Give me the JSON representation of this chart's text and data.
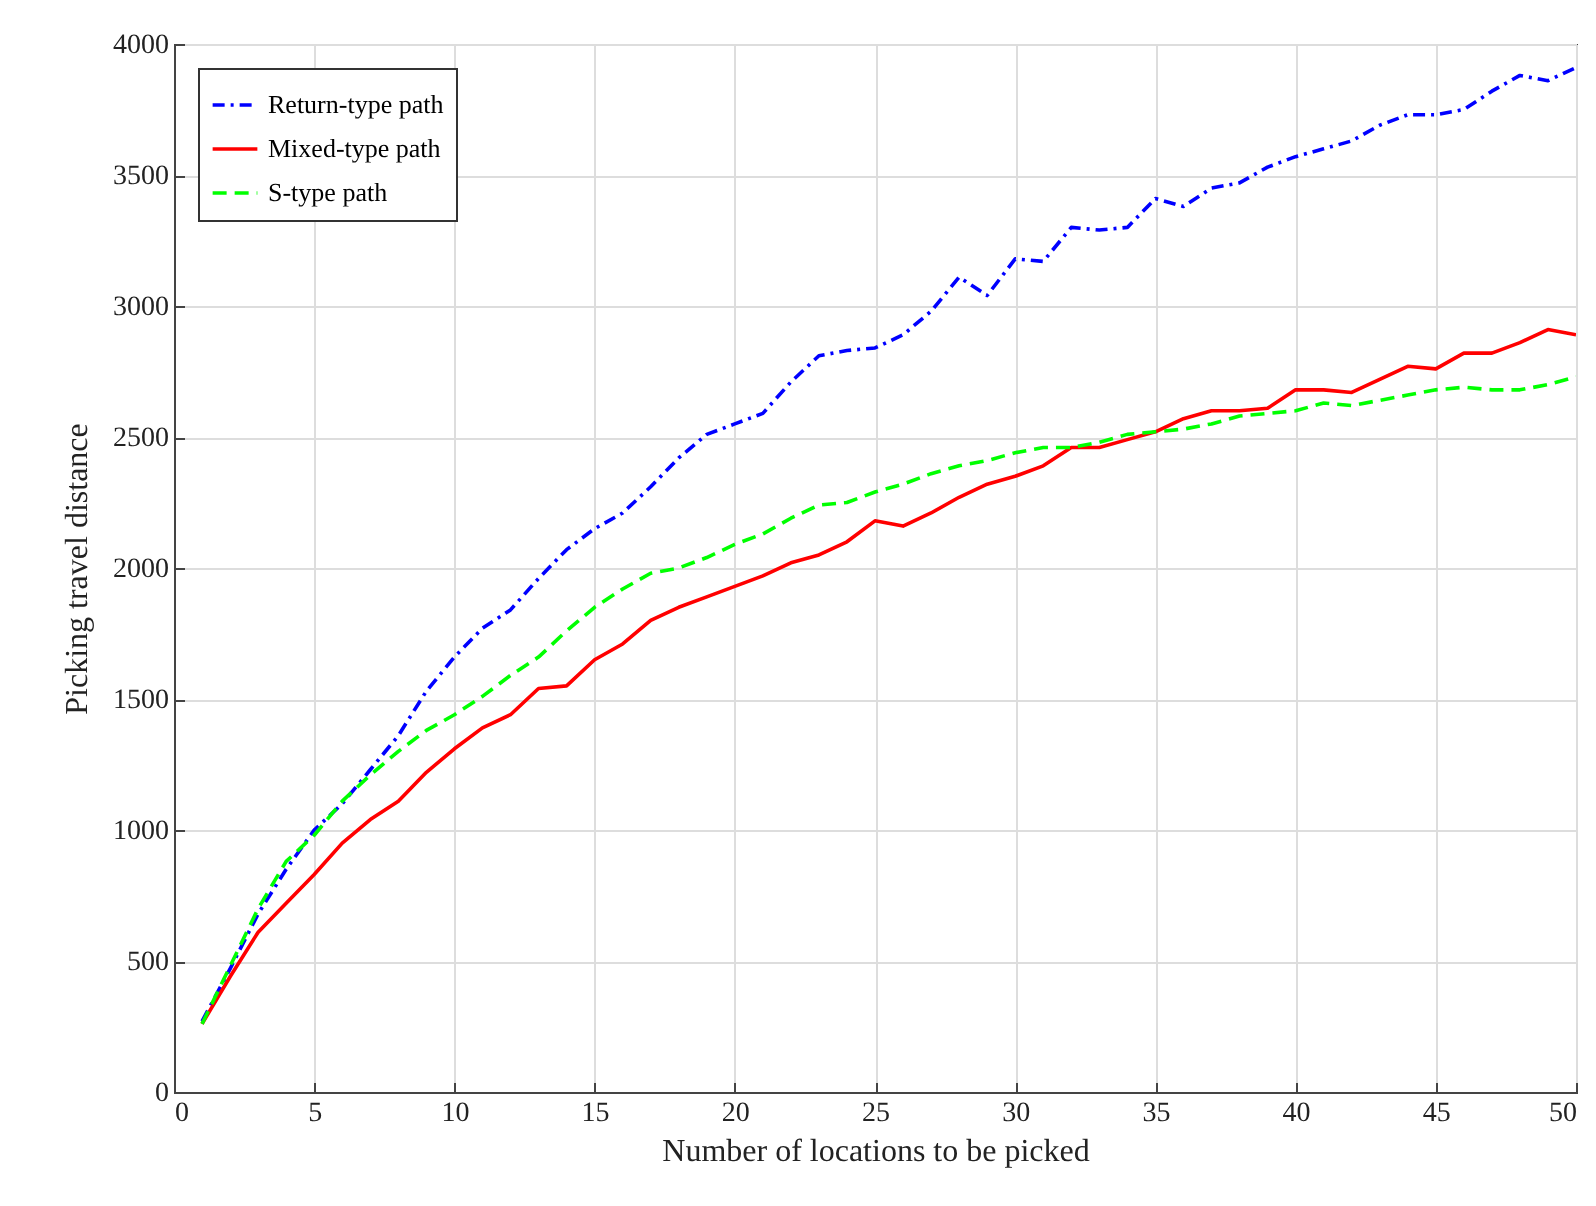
{
  "chart_data": {
    "type": "line",
    "xlabel": "Number of locations to be picked",
    "ylabel": "Picking travel distance",
    "x": [
      1,
      2,
      3,
      4,
      5,
      6,
      7,
      8,
      9,
      10,
      11,
      12,
      13,
      14,
      15,
      16,
      17,
      18,
      19,
      20,
      21,
      22,
      23,
      24,
      25,
      26,
      27,
      28,
      29,
      30,
      31,
      32,
      33,
      34,
      35,
      36,
      37,
      38,
      39,
      40,
      41,
      42,
      43,
      44,
      45,
      46,
      47,
      48,
      49,
      50
    ],
    "series": [
      {
        "name": "Return-type path",
        "color": "#0000ff",
        "line_style": "dashdot",
        "values": [
          270,
          470,
          680,
          850,
          1000,
          1100,
          1230,
          1360,
          1530,
          1660,
          1770,
          1840,
          1960,
          2070,
          2150,
          2210,
          2310,
          2420,
          2510,
          2550,
          2590,
          2710,
          2810,
          2830,
          2840,
          2890,
          2980,
          3110,
          3040,
          3180,
          3170,
          3300,
          3290,
          3300,
          3410,
          3380,
          3450,
          3470,
          3530,
          3570,
          3600,
          3630,
          3690,
          3730,
          3730,
          3750,
          3820,
          3880,
          3860,
          3910
        ]
      },
      {
        "name": "Mixed-type path",
        "color": "#ff0000",
        "line_style": "solid",
        "values": [
          260,
          440,
          610,
          720,
          830,
          950,
          1040,
          1110,
          1220,
          1310,
          1390,
          1440,
          1540,
          1550,
          1650,
          1710,
          1800,
          1850,
          1890,
          1930,
          1970,
          2020,
          2050,
          2100,
          2180,
          2160,
          2210,
          2270,
          2320,
          2350,
          2390,
          2460,
          2460,
          2490,
          2520,
          2570,
          2600,
          2600,
          2610,
          2680,
          2680,
          2670,
          2720,
          2770,
          2760,
          2820,
          2820,
          2860,
          2910,
          2890
        ]
      },
      {
        "name": "S-type path",
        "color": "#00ff00",
        "line_style": "dashed",
        "values": [
          260,
          480,
          700,
          880,
          980,
          1110,
          1210,
          1300,
          1380,
          1440,
          1510,
          1590,
          1660,
          1760,
          1850,
          1920,
          1980,
          2000,
          2040,
          2090,
          2130,
          2190,
          2240,
          2250,
          2290,
          2320,
          2360,
          2390,
          2410,
          2440,
          2460,
          2460,
          2480,
          2510,
          2520,
          2530,
          2550,
          2580,
          2590,
          2600,
          2630,
          2620,
          2640,
          2660,
          2680,
          2690,
          2680,
          2680,
          2700,
          2730
        ]
      }
    ],
    "xlim": [
      0,
      50
    ],
    "xticks": [
      0,
      5,
      10,
      15,
      20,
      25,
      30,
      35,
      40,
      45,
      50
    ],
    "ylim": [
      0,
      4000
    ],
    "yticks": [
      0,
      500,
      1000,
      1500,
      2000,
      2500,
      3000,
      3500,
      4000
    ],
    "grid": true,
    "legend": "top left"
  }
}
